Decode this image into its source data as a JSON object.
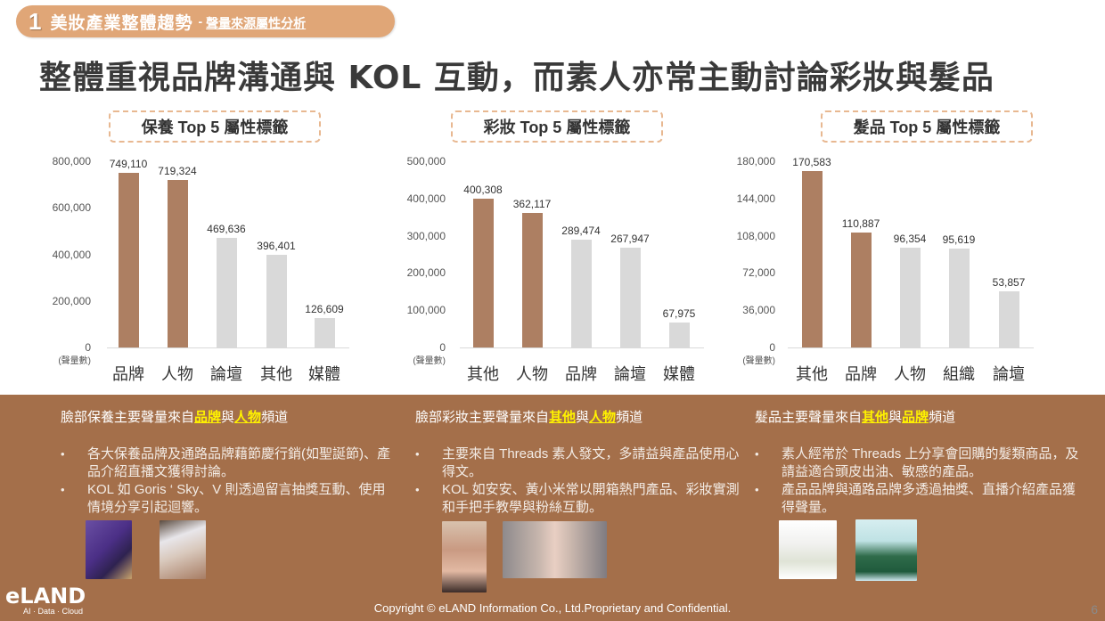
{
  "section": {
    "number": "1",
    "title": "美妝產業整體趨勢",
    "separator": "-",
    "subtitle": "聲量來源屬性分析"
  },
  "headline": "整體重視品牌溝通與 KOL 互動，而素人亦常主動討論彩妝與髮品",
  "colors": {
    "highlight_bar": "#AD7F62",
    "normal_bar": "#D9D9D9",
    "section_pill": "#E0A677",
    "bottom_panel": "#A46F4A",
    "keyword_highlight": "#FFF200"
  },
  "chart_data": [
    {
      "type": "bar",
      "title": "保養 Top 5 屬性標籤",
      "categories": [
        "品牌",
        "人物",
        "論壇",
        "其他",
        "媒體"
      ],
      "values": [
        749110,
        719324,
        469636,
        396401,
        126609
      ],
      "value_labels": [
        "749,110",
        "719,324",
        "469,636",
        "396,401",
        "126,609"
      ],
      "highlighted": [
        true,
        true,
        false,
        false,
        false
      ],
      "ylabel": "(聲量數)",
      "yticks": [
        "800,000",
        "600,000",
        "400,000",
        "200,000",
        "0"
      ],
      "ylim": [
        0,
        800000
      ],
      "grid": false
    },
    {
      "type": "bar",
      "title": "彩妝 Top 5 屬性標籤",
      "categories": [
        "其他",
        "人物",
        "品牌",
        "論壇",
        "媒體"
      ],
      "values": [
        400308,
        362117,
        289474,
        267947,
        67975
      ],
      "value_labels": [
        "400,308",
        "362,117",
        "289,474",
        "267,947",
        "67,975"
      ],
      "highlighted": [
        true,
        true,
        false,
        false,
        false
      ],
      "ylabel": "(聲量數)",
      "yticks": [
        "500,000",
        "400,000",
        "300,000",
        "200,000",
        "100,000",
        "0"
      ],
      "ylim": [
        0,
        500000
      ],
      "grid": false
    },
    {
      "type": "bar",
      "title": "髮品 Top 5 屬性標籤",
      "categories": [
        "其他",
        "品牌",
        "人物",
        "組織",
        "論壇"
      ],
      "values": [
        170583,
        110887,
        96354,
        95619,
        53857
      ],
      "value_labels": [
        "170,583",
        "110,887",
        "96,354",
        "95,619",
        "53,857"
      ],
      "highlighted": [
        true,
        true,
        false,
        false,
        false
      ],
      "ylabel": "(聲量數)",
      "yticks": [
        "180,000",
        "144,000",
        "108,000",
        "72,000",
        "36,000",
        "0"
      ],
      "ylim": [
        0,
        180000
      ],
      "grid": false
    }
  ],
  "insights": [
    {
      "head_pre": "臉部保養主要聲量來自",
      "hl1": "品牌",
      "mid": "與",
      "hl2": "人物",
      "head_post": "頻道",
      "bullets": [
        "各大保養品牌及通路品牌藉節慶行銷(如聖誕節)、產品介紹直播文獲得討論。",
        "KOL 如 Goris ‘ Sky、V 則透過留言抽獎互動、使用情境分享引起迴響。"
      ],
      "images": [
        "purple-skincare-gift-box-photo",
        "hand-swatch-with-sponges-photo"
      ]
    },
    {
      "head_pre": "臉部彩妝主要聲量來自",
      "hl1": "其他",
      "mid": "與",
      "hl2": "人物",
      "head_post": "頻道",
      "bullets": [
        "主要來自 Threads 素人發文，多請益與產品使用心得文。",
        "KOL 如安安、黃小米常以開箱熱門產品、彩妝實測和手把手教學與粉絲互動。"
      ],
      "images": [
        "kol-makeup-tutorial-portrait",
        "kol-makeup-video-screenshot"
      ]
    },
    {
      "head_pre": "髮品主要聲量來自",
      "hl1": "其他",
      "mid": "與",
      "hl2": "品牌",
      "head_post": "頻道",
      "bullets": [
        "素人經常於 Threads 上分享會回購的髮類商品，及請益適合頭皮出油、敏感的產品。",
        "產品品牌與通路品牌多透過抽獎、直播介紹產品獲得聲量。"
      ],
      "images": [
        "shampoo-bottle-post",
        "green-shampoo-ad-banner"
      ]
    }
  ],
  "footer": {
    "logo_text": "eLAND",
    "logo_tagline": "AI · Data · Cloud",
    "copyright": "Copyright © eLAND Information Co., Ltd.Proprietary and Confidential.",
    "page_number": "6"
  }
}
